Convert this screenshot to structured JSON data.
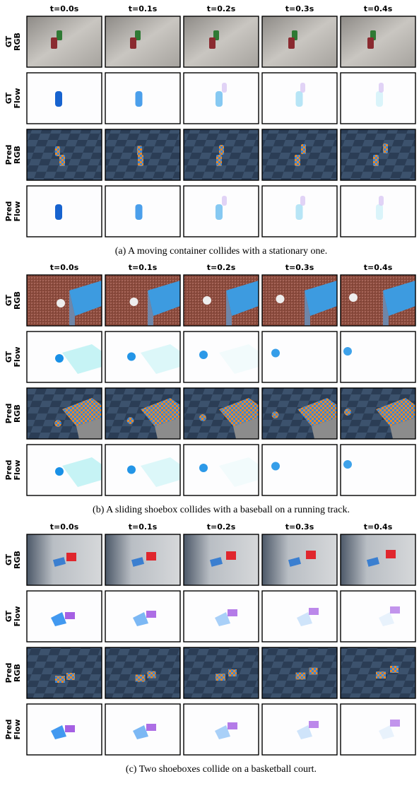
{
  "panels": [
    {
      "time_labels": [
        "t=0.0s",
        "t=0.1s",
        "t=0.2s",
        "t=0.3s",
        "t=0.4s"
      ],
      "row_labels": [
        [
          "GT",
          "RGB"
        ],
        [
          "GT",
          "Flow"
        ],
        [
          "Pred",
          "RGB"
        ],
        [
          "Pred",
          "Flow"
        ]
      ],
      "caption": "(a) A moving container collides with a stationary one."
    },
    {
      "time_labels": [
        "t=0.0s",
        "t=0.1s",
        "t=0.2s",
        "t=0.3s",
        "t=0.4s"
      ],
      "row_labels": [
        [
          "GT",
          "RGB"
        ],
        [
          "GT",
          "Flow"
        ],
        [
          "Pred",
          "RGB"
        ],
        [
          "Pred",
          "Flow"
        ]
      ],
      "caption": "(b) A sliding shoebox collides with a baseball on a running track."
    },
    {
      "time_labels": [
        "t=0.0s",
        "t=0.1s",
        "t=0.2s",
        "t=0.3s",
        "t=0.4s"
      ],
      "row_labels": [
        [
          "GT",
          "RGB"
        ],
        [
          "GT",
          "Flow"
        ],
        [
          "Pred",
          "RGB"
        ],
        [
          "Pred",
          "Flow"
        ]
      ],
      "caption": "(c) Two shoeboxes collide on a basketball court."
    }
  ]
}
